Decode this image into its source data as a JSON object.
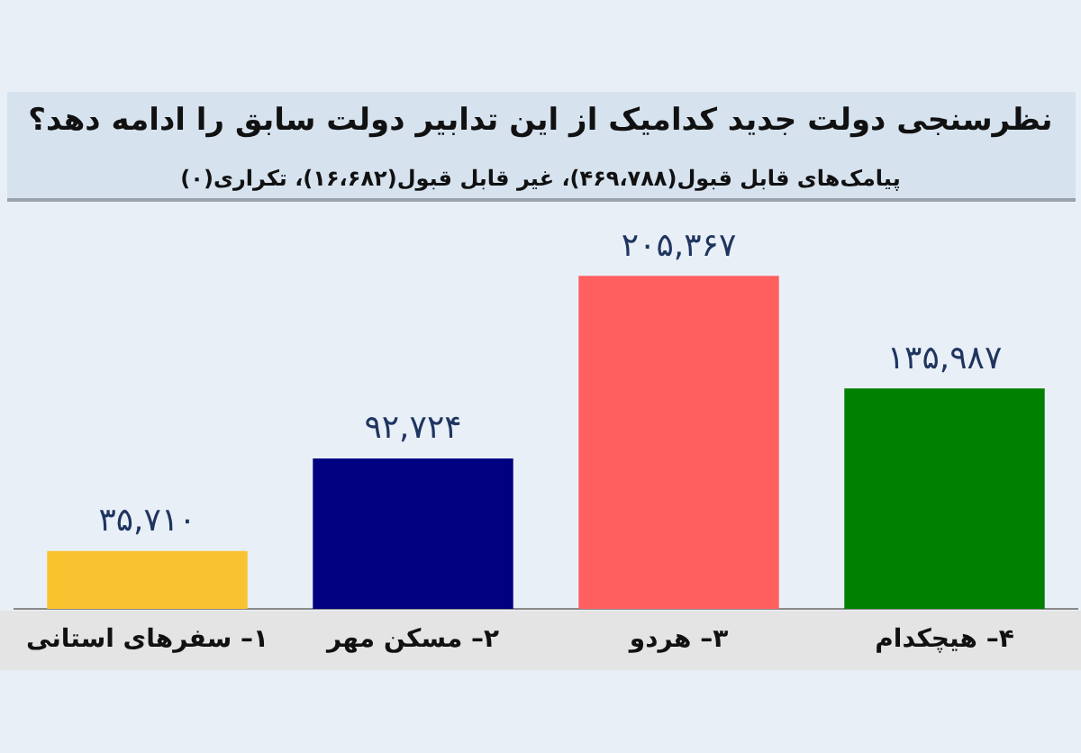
{
  "chart_data": {
    "type": "bar",
    "title": "نظرسنجی دولت جدید کدامیک از این تدابیر دولت سابق را ادامه دهد؟",
    "subtitle": "پیامک‌های قابل قبول(۴۶۹،۷۸۸)، غیر قابل قبول(۱۶،۶۸۲)، تکراری(۰)",
    "categories": [
      "۱– سفرهای استانی",
      "۲– مسکن مهر",
      "۳– هردو",
      "۴– هیچکدام"
    ],
    "values": [
      35710,
      92724,
      205367,
      135987
    ],
    "colors": [
      "#f9c22f",
      "#000080",
      "#ff5f5f",
      "#008000"
    ],
    "value_labels": [
      "۳۵,۷۱۰",
      "۹۲,۷۲۴",
      "۲۰۵,۳۶۷",
      "۱۳۵,۹۸۷"
    ],
    "tick_labels": "x",
    "legend": false
  }
}
